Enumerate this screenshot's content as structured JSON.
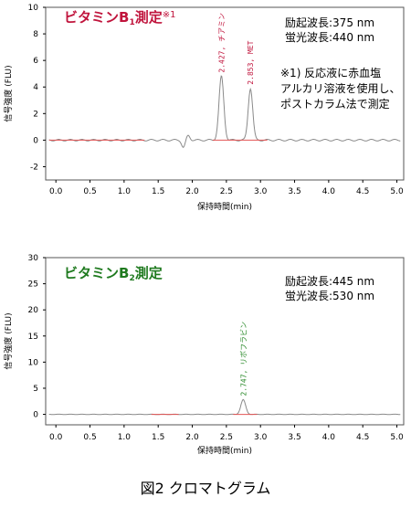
{
  "chart_data": [
    {
      "type": "line",
      "title": "ビタミンB",
      "title_sub": "1",
      "title_tail": "測定",
      "title_mark": "※1",
      "xlabel": "保持時間(min)",
      "ylabel": "信号強度 (FLU)",
      "xlim": [
        -0.15,
        5.1
      ],
      "ylim": [
        -3,
        10
      ],
      "xticks": [
        "0.0",
        "0.5",
        "1.0",
        "1.5",
        "2.0",
        "2.5",
        "3.0",
        "3.5",
        "4.0",
        "4.5",
        "5.0"
      ],
      "yticks": [
        "10",
        "8",
        "6",
        "4",
        "2",
        "0",
        "-2"
      ],
      "yticks_values": [
        10,
        8,
        6,
        4,
        2,
        0,
        -2
      ],
      "notes": [
        "励起波長:375 nm",
        "蛍光波長:440 nm"
      ],
      "footnote": [
        "※1) 反応液に赤血塩",
        "アルカリ溶液を使用し、",
        "ポストカラム法で測定"
      ],
      "peaks": [
        {
          "x": 2.427,
          "y": 4.8,
          "width": 0.035,
          "label": "2.427, チアミン"
        },
        {
          "x": 2.853,
          "y": 3.9,
          "width": 0.033,
          "label": "2.853, MET"
        }
      ],
      "disturbance": [
        {
          "x": 1.87,
          "y": -0.55
        },
        {
          "x": 1.94,
          "y": 0.35
        }
      ],
      "baseline_segments": [
        [
          -0.1,
          1.3
        ],
        [
          2.3,
          3.1
        ]
      ]
    },
    {
      "type": "line",
      "title": "ビタミンB",
      "title_sub": "2",
      "title_tail": "測定",
      "xlabel": "保持時間(min)",
      "ylabel": "信号強度 (FLU)",
      "xlim": [
        -0.15,
        5.1
      ],
      "ylim": [
        -2,
        30
      ],
      "xticks": [
        "0.0",
        "0.5",
        "1.0",
        "1.5",
        "2.0",
        "2.5",
        "3.0",
        "3.5",
        "4.0",
        "4.5",
        "5.0"
      ],
      "yticks": [
        "30",
        "25",
        "20",
        "15",
        "10",
        "5",
        "0"
      ],
      "yticks_values": [
        30,
        25,
        20,
        15,
        10,
        5,
        0
      ],
      "notes": [
        "励起波長:445 nm",
        "蛍光波長:530 nm"
      ],
      "peaks": [
        {
          "x": 2.747,
          "y": 2.8,
          "width": 0.035,
          "label": "2.747, リボフラビン"
        }
      ],
      "baseline_segments": [
        [
          1.4,
          1.8
        ],
        [
          2.6,
          2.95
        ]
      ]
    }
  ],
  "caption": "図2  クロマトグラム",
  "colors": {
    "trace": "#8a8a8a",
    "baseline": "#e25555",
    "title1": "#c0143c",
    "title2": "#1f7a1f"
  }
}
